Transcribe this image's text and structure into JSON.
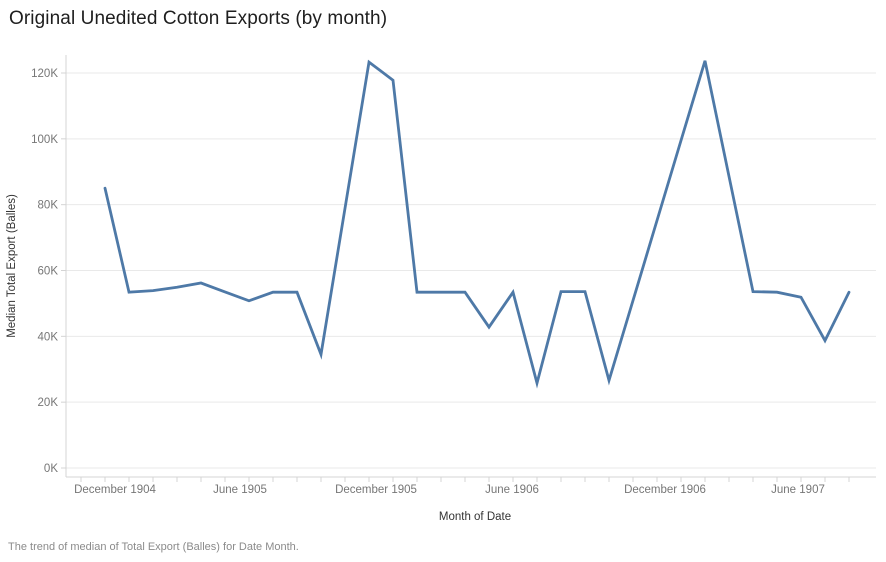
{
  "title": "Original Unedited Cotton Exports (by month)",
  "caption": "The trend of median of Total Export (Balles) for Date Month.",
  "colors": {
    "line": "#4e79a7",
    "gridline": "#e9e9e9",
    "axis_line": "#d4d4d4",
    "tick_label": "#767676",
    "axis_title": "#333333",
    "title_text": "#1e1e1e",
    "caption_text": "#8b8b8b",
    "background": "#ffffff"
  },
  "chart_data": {
    "type": "line",
    "title": "Original Unedited Cotton Exports (by month)",
    "xlabel": "Month of Date",
    "ylabel": "Median Total Export (Balles)",
    "legend_position": "none",
    "grid": "horizontal",
    "ylim": [
      0,
      125000
    ],
    "ytick_step": 20000,
    "yticks": [
      0,
      20000,
      40000,
      60000,
      80000,
      100000,
      120000
    ],
    "ytick_labels": [
      "0K",
      "20K",
      "40K",
      "60K",
      "80K",
      "100K",
      "120K"
    ],
    "xtick_labels": [
      "December 1904",
      "June 1905",
      "December 1905",
      "June 1906",
      "December 1906",
      "June 1907"
    ],
    "xtick_label_indices": [
      0,
      6,
      12,
      18,
      24,
      30
    ],
    "x": [
      "December 1904",
      "January 1905",
      "February 1905",
      "March 1905",
      "April 1905",
      "May 1905",
      "June 1905",
      "July 1905",
      "August 1905",
      "September 1905",
      "October 1905",
      "November 1905",
      "December 1905",
      "January 1906",
      "February 1906",
      "March 1906",
      "April 1906",
      "May 1906",
      "June 1906",
      "July 1906",
      "August 1906",
      "September 1906",
      "October 1906",
      "November 1906",
      "December 1906",
      "January 1907",
      "February 1907",
      "March 1907",
      "April 1907",
      "May 1907",
      "June 1907",
      "July 1907"
    ],
    "values": [
      85000,
      53400,
      53900,
      54900,
      56200,
      53500,
      50800,
      53400,
      53400,
      34500,
      78900,
      123300,
      117800,
      53400,
      53400,
      53400,
      42800,
      53400,
      25800,
      53600,
      53600,
      26600,
      50900,
      75200,
      99500,
      123700,
      88600,
      53600,
      53400,
      51900,
      38700,
      53400
    ]
  }
}
